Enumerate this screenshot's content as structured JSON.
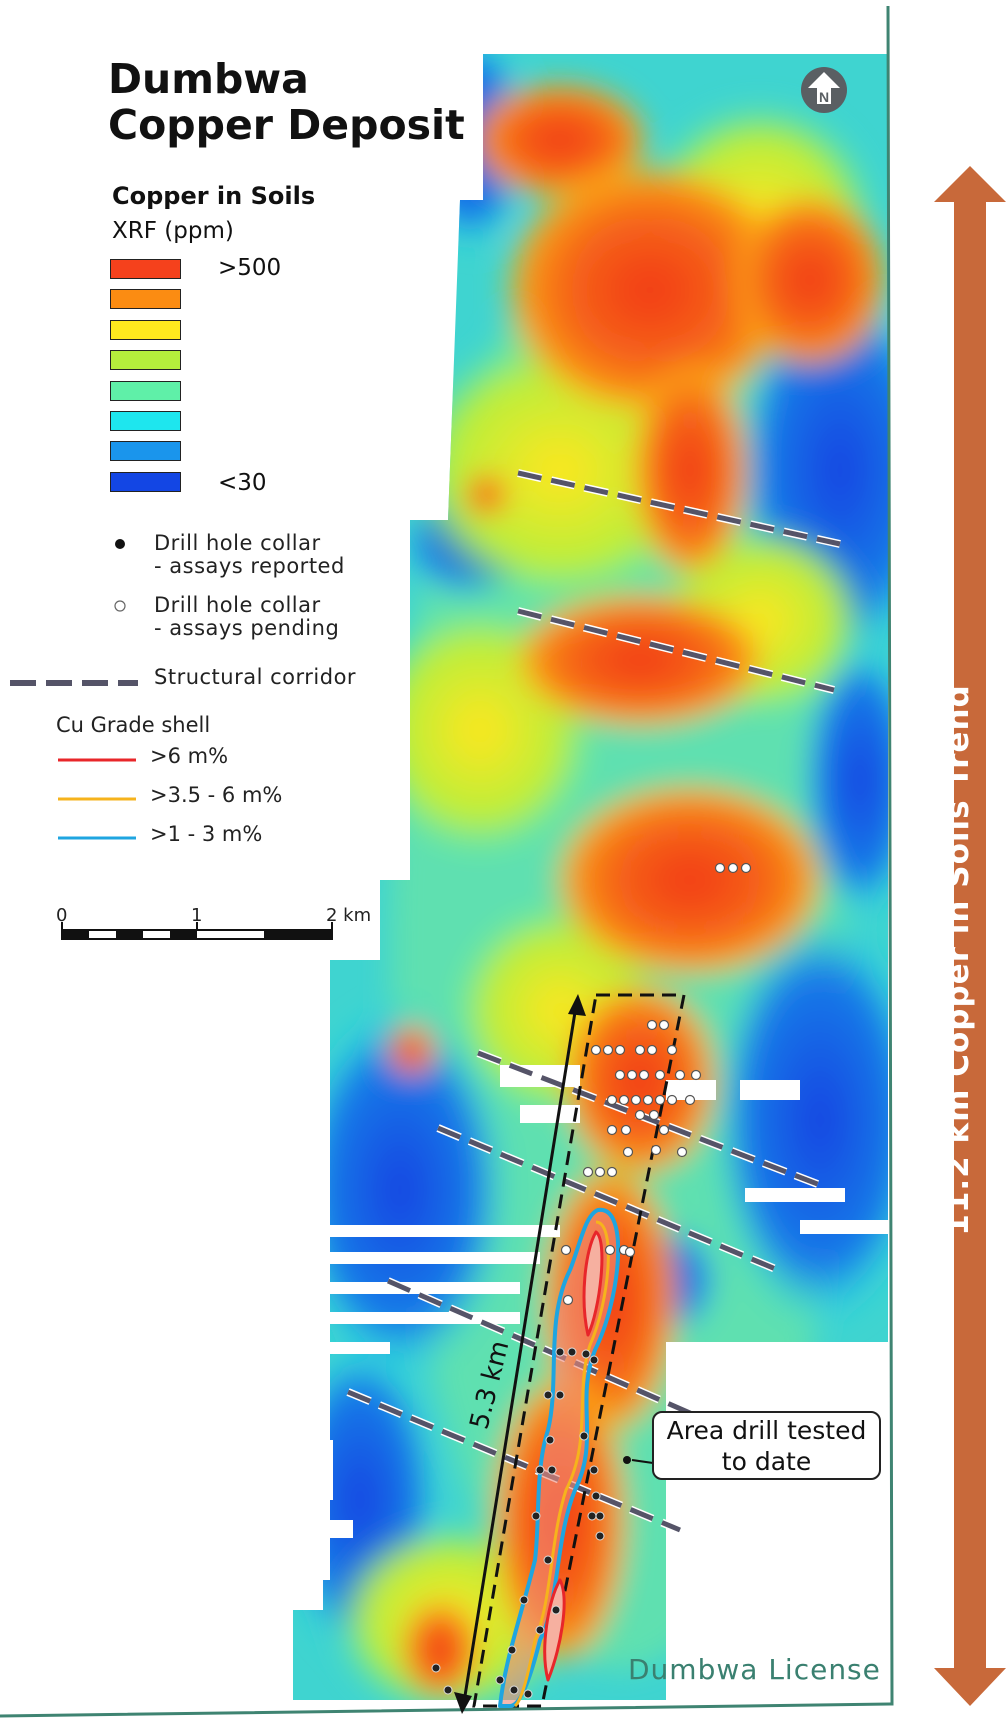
{
  "map": {
    "title_line1": "Dumbwa",
    "title_line2": "Copper Deposit",
    "north_label": "N",
    "license_label": "Dumbwa License",
    "trend_label": "11.2 km Copper in Soils Trend",
    "drill_length_label": "5.3 km",
    "callout_line1": "Area drill tested",
    "callout_line2": "to date",
    "colors": {
      "map_border": "#3f8472",
      "trend_arrow": "#c8693a",
      "structural_corridor": "#555468",
      "grade_high": "#e8262a",
      "grade_mid": "#f6b31c",
      "grade_low": "#1fa5e0"
    }
  },
  "legend": {
    "heading": "Copper in Soils",
    "unit": "XRF (ppm)",
    "scale_max_label": ">500",
    "scale_min_label": "<30",
    "swatches": [
      {
        "color": "#f5411c",
        "name": "red"
      },
      {
        "color": "#fb8c12",
        "name": "orange"
      },
      {
        "color": "#ffea1e",
        "name": "yellow"
      },
      {
        "color": "#b5ee3c",
        "name": "lime"
      },
      {
        "color": "#5ff0a8",
        "name": "aqua-green"
      },
      {
        "color": "#1ee6ee",
        "name": "cyan"
      },
      {
        "color": "#1a95ec",
        "name": "light-blue"
      },
      {
        "color": "#1346e4",
        "name": "dark-blue"
      }
    ],
    "symbols": {
      "assays_reported_line1": "Drill hole collar",
      "assays_reported_line2": "- assays reported",
      "assays_pending_line1": "Drill hole collar",
      "assays_pending_line2": "- assays pending",
      "structural_corridor": "Structural corridor"
    },
    "grade_shell": {
      "title": "Cu Grade shell",
      "high": ">6 m%",
      "mid": ">3.5 - 6 m%",
      "low": ">1 - 3 m%"
    },
    "scale_bar": {
      "tick_0": "0",
      "tick_1": "1",
      "tick_2": "2 km"
    }
  }
}
